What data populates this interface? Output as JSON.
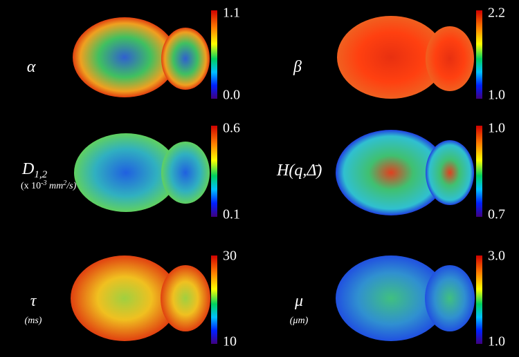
{
  "panels": [
    {
      "symbol": "α",
      "max": "1.1",
      "min": "0.0"
    },
    {
      "symbol": "β",
      "max": "2.2",
      "min": "1.0"
    },
    {
      "symbol": "D",
      "subscript": "1,2",
      "unit_open": "(x 10",
      "unit_exp": "-3",
      "unit_mid": " mm",
      "unit_sq": "2",
      "unit_close": "/s)",
      "max": "0.6",
      "min": "0.1"
    },
    {
      "symbol": "H(q,Δ̄)",
      "max": "1.0",
      "min": "0.7"
    },
    {
      "symbol": "τ",
      "unit": "(ms)",
      "max": "30",
      "min": "10"
    },
    {
      "symbol": "μ",
      "unit": "(μm)",
      "max": "3.0",
      "min": "1.0"
    }
  ]
}
